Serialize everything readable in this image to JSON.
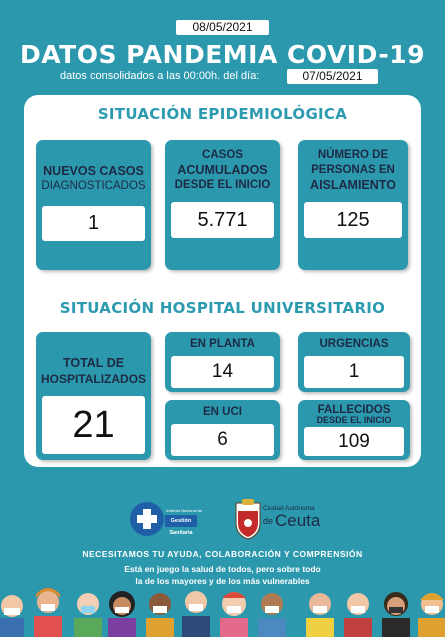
{
  "header": {
    "date": "08/05/2021",
    "title": "DATOS PANDEMIA COVID-19",
    "consolidated_label": "datos consolidados a las 00:00h. del día:",
    "consolidated_date": "07/05/2021"
  },
  "epidemiologica": {
    "title": "SITUACIÓN EPIDEMIOLÓGICA",
    "nuevos": {
      "line1": "NUEVOS CASOS",
      "line2": "DIAGNOSTICADOS",
      "value": "1"
    },
    "acumulados": {
      "line1": "CASOS",
      "line2": "ACUMULADOS",
      "line3": "DESDE EL INICIO",
      "value": "5.771"
    },
    "aislamiento": {
      "line1": "NÚMERO DE",
      "line2": "PERSONAS EN",
      "line3": "AISLAMIENTO",
      "value": "125"
    }
  },
  "hospital": {
    "title": "SITUACIÓN HOSPITAL UNIVERSITARIO",
    "total": {
      "line1": "TOTAL DE",
      "line2": "HOSPITALIZADOS",
      "value": "21"
    },
    "planta": {
      "label": "EN PLANTA",
      "value": "14"
    },
    "urgencias": {
      "label": "URGENCIAS",
      "value": "1"
    },
    "uci": {
      "label": "EN UCI",
      "value": "6"
    },
    "fallecidos": {
      "line1": "FALLECIDOS",
      "line2": "DESDE EL INICIO",
      "value": "109"
    }
  },
  "logos": {
    "ingesa_small": "Instituto Nacional de",
    "ingesa_main": "Gestión Sanitaria",
    "ceuta_small": "Ciudad Autónoma",
    "ceuta_de": "de",
    "ceuta_main": "Ceuta"
  },
  "footer": {
    "line1": "NECESITAMOS TU AYUDA, COLABORACIÓN  Y COMPRENSIÓN",
    "line2": "Está en juego la salud de todos, pero sobre todo",
    "line3": "la de los mayores y de los más vulnerables"
  },
  "colors": {
    "background": "#2c98ad",
    "accent": "#2c9aaf",
    "text_dark": "#1d2a44"
  }
}
